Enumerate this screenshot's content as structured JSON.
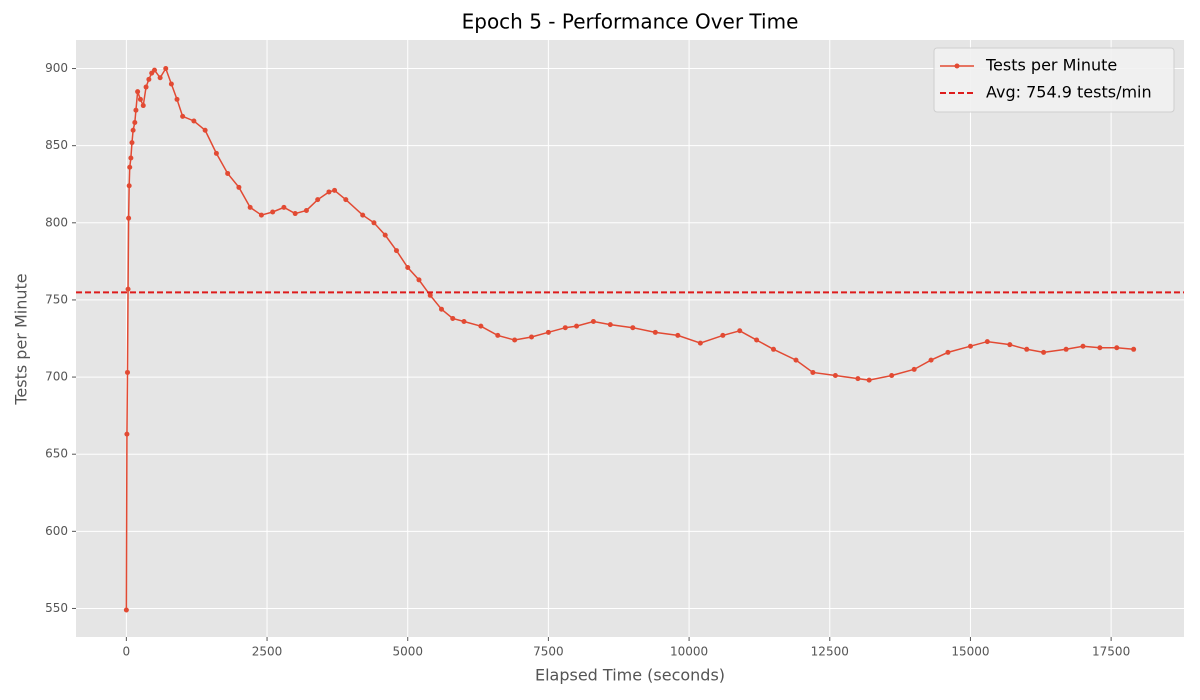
{
  "chart_data": {
    "type": "line",
    "title": "Epoch 5 - Performance Over Time",
    "x_label": "Elapsed Time (seconds)",
    "y_label": "Tests per Minute",
    "x": [
      0,
      10,
      20,
      30,
      40,
      50,
      60,
      80,
      100,
      120,
      150,
      170,
      200,
      250,
      300,
      350,
      400,
      450,
      500,
      600,
      700,
      800,
      900,
      1000,
      1200,
      1400,
      1600,
      1800,
      2000,
      2200,
      2400,
      2600,
      2800,
      3000,
      3200,
      3400,
      3600,
      3700,
      3900,
      4200,
      4400,
      4600,
      4800,
      5000,
      5200,
      5400,
      5600,
      5800,
      6000,
      6300,
      6600,
      6900,
      7200,
      7500,
      7800,
      8000,
      8300,
      8600,
      9000,
      9400,
      9800,
      10200,
      10600,
      10900,
      11200,
      11500,
      11900,
      12200,
      12600,
      13000,
      13200,
      13600,
      14000,
      14300,
      14600,
      15000,
      15300,
      15700,
      16000,
      16300,
      16700,
      17000,
      17300,
      17600,
      17900
    ],
    "series": [
      {
        "name": "Tests per Minute",
        "color": "#e24a33",
        "values": [
          549,
          663,
          703,
          757,
          803,
          824,
          836,
          842,
          852,
          860,
          865,
          873,
          885,
          880,
          876,
          888,
          893,
          897,
          899,
          894,
          900,
          890,
          880,
          869,
          866,
          860,
          845,
          832,
          823,
          810,
          805,
          807,
          810,
          806,
          808,
          815,
          820,
          821,
          815,
          805,
          800,
          792,
          782,
          771,
          763,
          753,
          744,
          738,
          736,
          733,
          727,
          724,
          726,
          729,
          732,
          733,
          736,
          734,
          732,
          729,
          727,
          722,
          727,
          730,
          724,
          718,
          711,
          703,
          701,
          699,
          698,
          701,
          705,
          711,
          716,
          720,
          723,
          721,
          718,
          716,
          718,
          720,
          719,
          719,
          718
        ]
      }
    ],
    "reference_line": {
      "name": "Avg: 754.9 tests/min",
      "value": 754.9,
      "color": "#dd1c1c"
    },
    "xlim": [
      -895,
      18795
    ],
    "ylim": [
      531.5,
      918.5
    ],
    "xticks": [
      0,
      2500,
      5000,
      7500,
      10000,
      12500,
      15000,
      17500
    ],
    "yticks": [
      550,
      600,
      650,
      700,
      750,
      800,
      850,
      900
    ],
    "grid": true,
    "legend": "upper right"
  }
}
